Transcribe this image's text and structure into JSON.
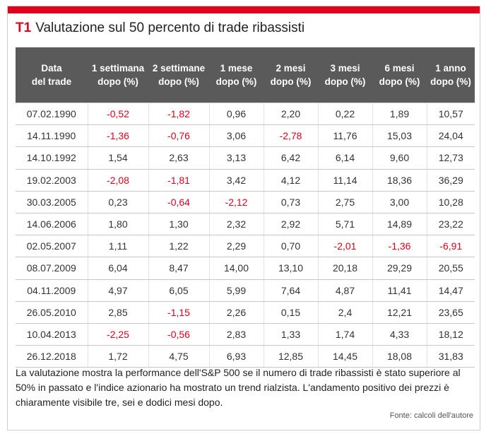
{
  "figure": {
    "tag": "T1",
    "title": "Valutazione sul 50 percento di trade ribassisti",
    "caption": "La valutazione mostra la performance dell'S&P 500 se il numero di trade ribassisti è stato superiore al 50% in passato e l'indice azionario ha mostrato un trend rialzista. L'andamento positivo dei prezzi è chiaramente visibile tre, sei e dodici mesi dopo.",
    "source": "Fonte: calcoli dell'autore"
  },
  "colors": {
    "accent": "#e3001b",
    "header_bg": "#5a5a5a",
    "negative": "#e3001b"
  },
  "table": {
    "headers": [
      [
        "Data",
        "del trade"
      ],
      [
        "1 settimana",
        "dopo (%)"
      ],
      [
        "2 settimane",
        "dopo (%)"
      ],
      [
        "1 mese",
        "dopo (%)"
      ],
      [
        "2 mesi",
        "dopo (%)"
      ],
      [
        "3 mesi",
        "dopo (%)"
      ],
      [
        "6 mesi",
        "dopo (%)"
      ],
      [
        "1 anno",
        "dopo (%)"
      ]
    ],
    "rows": [
      [
        "07.02.1990",
        "-0,52",
        "-1,82",
        "0,96",
        "2,20",
        "0,22",
        "1,89",
        "10,57"
      ],
      [
        "14.11.1990",
        "-1,36",
        "-0,76",
        "3,06",
        "-2,78",
        "11,76",
        "15,03",
        "24,04"
      ],
      [
        "14.10.1992",
        "1,54",
        "2,63",
        "3,13",
        "6,42",
        "6,14",
        "9,60",
        "12,73"
      ],
      [
        "19.02.2003",
        "-2,08",
        "-1,81",
        "3,42",
        "4,12",
        "11,14",
        "18,36",
        "36,29"
      ],
      [
        "30.03.2005",
        "0,23",
        "-0,64",
        "-2,12",
        "0,73",
        "2,75",
        "3,00",
        "10,28"
      ],
      [
        "14.06.2006",
        "1,80",
        "1,30",
        "2,32",
        "2,92",
        "5,71",
        "14,89",
        "23,22"
      ],
      [
        "02.05.2007",
        "1,11",
        "1,22",
        "2,29",
        "0,70",
        "-2,01",
        "-1,36",
        "-6,91"
      ],
      [
        "08.07.2009",
        "6,04",
        "8,47",
        "14,00",
        "13,10",
        "20,18",
        "29,29",
        "20,55"
      ],
      [
        "04.11.2009",
        "4,97",
        "6,05",
        "5,99",
        "7,64",
        "4,87",
        "11,41",
        "14,47"
      ],
      [
        "26.05.2010",
        "2,85",
        "-1,15",
        "2,26",
        "0,15",
        "2,4",
        "12,21",
        "23,65"
      ],
      [
        "10.04.2013",
        "-2,25",
        "-0,56",
        "2,83",
        "1,33",
        "1,74",
        "4,33",
        "18,12"
      ],
      [
        "26.12.2018",
        "1,72",
        "4,75",
        "6,93",
        "12,85",
        "14,45",
        "18,08",
        "31,83"
      ]
    ]
  }
}
